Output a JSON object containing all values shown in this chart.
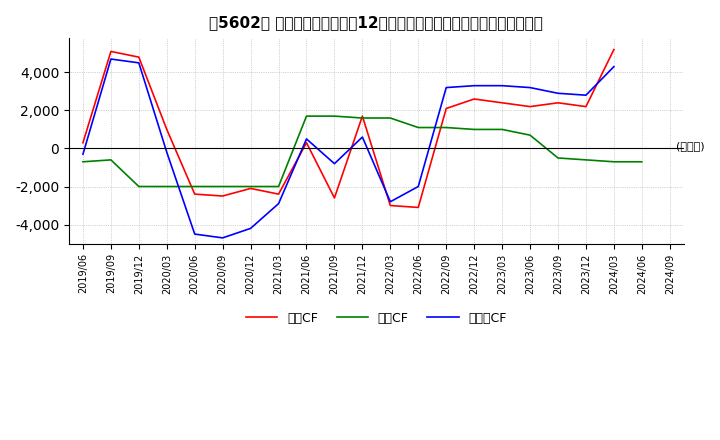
{
  "title": "【5602】 キャッシュフローの12か月移動合計の対前年同期増減額の推移",
  "ylabel": "(百万円)",
  "ylim": [
    -5000,
    5800
  ],
  "yticks": [
    -4000,
    -2000,
    0,
    2000,
    4000
  ],
  "legend_labels": [
    "営業CF",
    "投資CF",
    "フリーCF"
  ],
  "colors": {
    "eigyo": "#ff0000",
    "toshi": "#008000",
    "free": "#0000ff"
  },
  "dates": [
    "2019/06",
    "2019/09",
    "2019/12",
    "2020/03",
    "2020/06",
    "2020/09",
    "2020/12",
    "2021/03",
    "2021/06",
    "2021/09",
    "2021/12",
    "2022/03",
    "2022/06",
    "2022/09",
    "2022/12",
    "2023/03",
    "2023/06",
    "2023/09",
    "2023/12",
    "2024/03",
    "2024/06",
    "2024/09"
  ],
  "eigyo_cf": [
    300,
    5100,
    null,
    null,
    -2400,
    -2500,
    -2000,
    -2400,
    300,
    -2600,
    null,
    -3000,
    -3100,
    2100,
    2600,
    2400,
    2200,
    2400,
    2200,
    5200,
    null,
    null
  ],
  "toshi_cf": [
    -700,
    -600,
    -2000,
    -2000,
    -2000,
    -2000,
    -2000,
    -2000,
    1700,
    1700,
    1600,
    1600,
    1100,
    1100,
    1000,
    1000,
    700,
    -500,
    -600,
    -700,
    -700,
    null
  ],
  "free_cf": [
    -300,
    4700,
    null,
    null,
    -4500,
    -4700,
    null,
    null,
    500,
    -800,
    600,
    -2800,
    -2000,
    3200,
    3300,
    3300,
    3200,
    2900,
    2800,
    4300,
    null,
    null
  ]
}
